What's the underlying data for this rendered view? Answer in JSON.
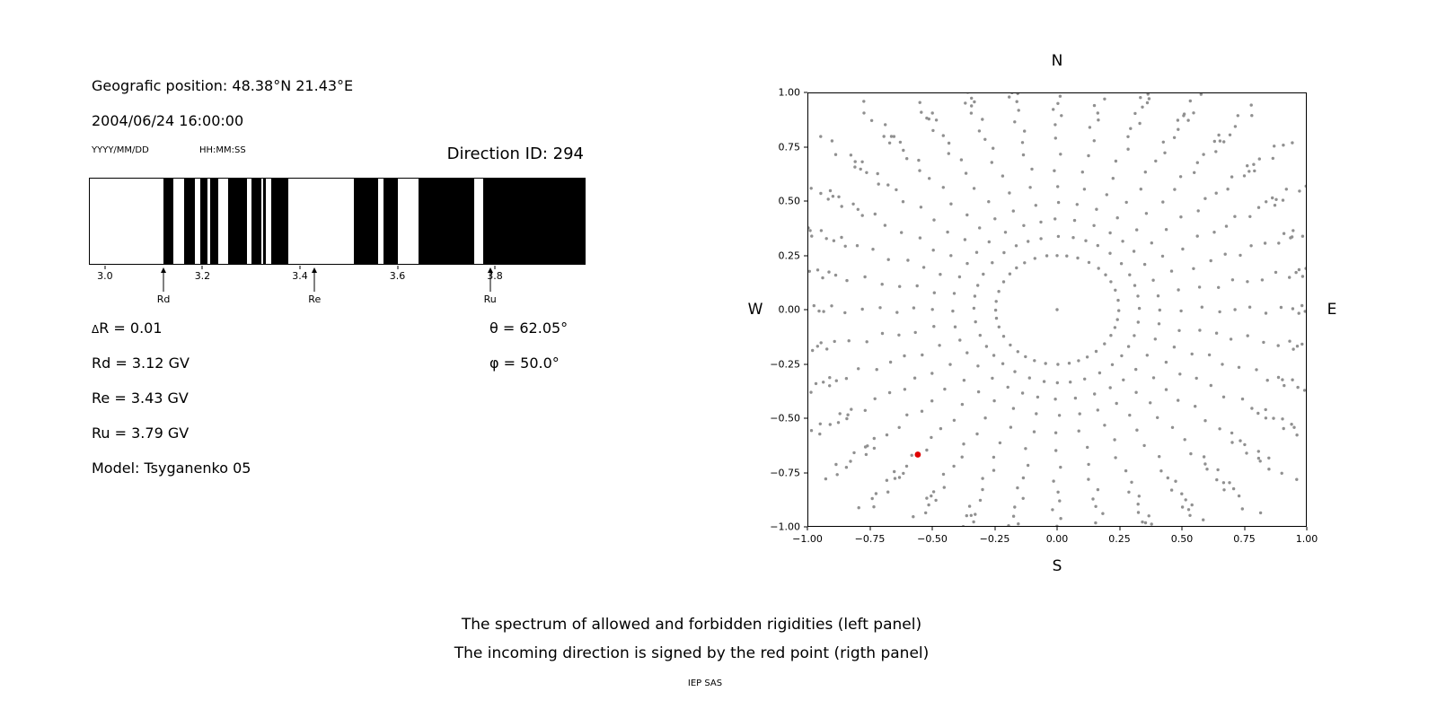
{
  "colors": {
    "foreground": "#000000",
    "band": "#000000",
    "dot": "#909090",
    "red_point": "#e00000",
    "background": "#ffffff"
  },
  "header": {
    "position": "Geografic position: 48.38°N 21.43°E",
    "datetime": "2004/06/24 16:00:00",
    "date_hint": "YYYY/MM/DD",
    "time_hint": "HH:MM:SS",
    "direction_id": "Direction ID: 294"
  },
  "info": {
    "delta_symbol": "Δ",
    "delta_rest": "R = 0.01",
    "rd": "Rd = 3.12 GV",
    "re": "Re = 3.43 GV",
    "ru": "Ru = 3.79 GV",
    "model": "Model: Tsyganenko 05",
    "theta": "θ = 62.05°",
    "phi": "φ = 50.0°"
  },
  "caption": {
    "line1": "The spectrum of allowed and forbidden rigidities (left panel)",
    "line2": "The incoming direction is signed by the red point (rigth panel)"
  },
  "footer": "IEP SAS",
  "chart_data": [
    {
      "type": "bar",
      "name": "rigidity-spectrum",
      "description": "Barcode of forbidden (black) and allowed (white) rigidity bands in GV",
      "x_range": [
        2.967,
        3.986
      ],
      "x_ticks": [
        3.0,
        3.2,
        3.4,
        3.6,
        3.8
      ],
      "x_tick_labels": [
        "3.0",
        "3.2",
        "3.4",
        "3.6",
        "3.8"
      ],
      "forbidden_bands_gv": [
        [
          3.119,
          3.139
        ],
        [
          3.161,
          3.183
        ],
        [
          3.194,
          3.21
        ],
        [
          3.215,
          3.232
        ],
        [
          3.252,
          3.29
        ],
        [
          3.299,
          3.32
        ],
        [
          3.324,
          3.329
        ],
        [
          3.34,
          3.375
        ],
        [
          3.51,
          3.561
        ],
        [
          3.572,
          3.601
        ],
        [
          3.644,
          3.758
        ],
        [
          3.777,
          3.986
        ]
      ],
      "markers": [
        {
          "label": "Rd",
          "value": 3.12
        },
        {
          "label": "Re",
          "value": 3.43
        },
        {
          "label": "Ru",
          "value": 3.79
        }
      ]
    },
    {
      "type": "scatter",
      "name": "asymptotic-directions",
      "description": "Radial spokes of gray dots; red point marks the incoming direction",
      "compass": {
        "top": "N",
        "bottom": "S",
        "left": "W",
        "right": "E"
      },
      "xlim": [
        -1,
        1
      ],
      "ylim": [
        -1,
        1
      ],
      "x_ticks": [
        -1.0,
        -0.75,
        -0.5,
        -0.25,
        0.0,
        0.25,
        0.5,
        0.75,
        1.0
      ],
      "x_tick_labels": [
        "−1.00",
        "−0.75",
        "−0.50",
        "−0.25",
        "0.00",
        "0.25",
        "0.50",
        "0.75",
        "1.00"
      ],
      "y_ticks": [
        1.0,
        0.75,
        0.5,
        0.25,
        0.0,
        -0.25,
        -0.5,
        -0.75,
        -1.0
      ],
      "y_tick_labels": [
        "1.00",
        "0.75",
        "0.50",
        "0.25",
        "0.00",
        "−0.25",
        "−0.50",
        "−0.75",
        "−1.00"
      ],
      "spoke_count": 36,
      "inner_ring_radius": 0.25,
      "spoke_radii": [
        0.25,
        0.335,
        0.415,
        0.495,
        0.575,
        0.65,
        0.72,
        0.785,
        0.845,
        0.895,
        0.935,
        0.965,
        0.99,
        1.01,
        1.03,
        1.05,
        1.075,
        1.105,
        1.14,
        1.18,
        1.23
      ],
      "center_dot": [
        0,
        0
      ],
      "red_point": {
        "x": -0.56,
        "y": -0.67
      }
    }
  ]
}
